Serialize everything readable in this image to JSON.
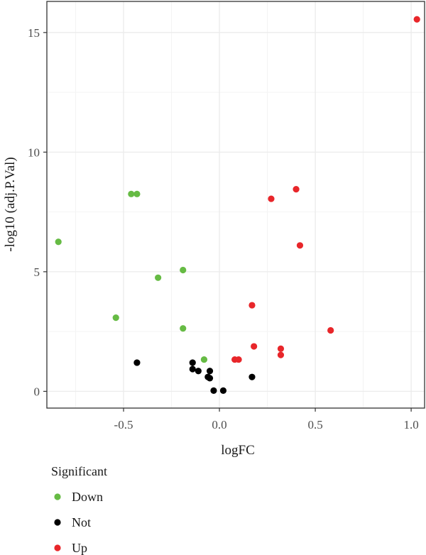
{
  "chart_data": {
    "type": "scatter",
    "title": "",
    "xlabel": "logFC",
    "ylabel": "-log10 (adj.P.Val)",
    "xlim": [
      -0.9,
      1.07
    ],
    "ylim": [
      -0.7,
      16.3
    ],
    "xticks": [
      {
        "value": -0.5,
        "label": "-0.5"
      },
      {
        "value": 0.0,
        "label": "0.0"
      },
      {
        "value": 0.5,
        "label": "0.5"
      },
      {
        "value": 1.0,
        "label": "1.0"
      }
    ],
    "yticks": [
      {
        "value": 0,
        "label": "0"
      },
      {
        "value": 5,
        "label": "5"
      },
      {
        "value": 10,
        "label": "10"
      },
      {
        "value": 15,
        "label": "15"
      }
    ],
    "grid": true,
    "legend": {
      "title": "Significant",
      "placement": "bottom-left",
      "entries": [
        {
          "label": "Down",
          "color": "#66bb44"
        },
        {
          "label": "Not",
          "color": "#000000"
        },
        {
          "label": "Up",
          "color": "#e8262a"
        }
      ]
    },
    "series": [
      {
        "name": "Down",
        "color": "#66bb44",
        "points": [
          {
            "x": -0.84,
            "y": 6.25
          },
          {
            "x": -0.46,
            "y": 8.25
          },
          {
            "x": -0.43,
            "y": 8.25
          },
          {
            "x": -0.32,
            "y": 4.75
          },
          {
            "x": -0.19,
            "y": 5.07
          },
          {
            "x": -0.54,
            "y": 3.08
          },
          {
            "x": -0.19,
            "y": 2.63
          },
          {
            "x": -0.08,
            "y": 1.33
          }
        ]
      },
      {
        "name": "Not",
        "color": "#000000",
        "points": [
          {
            "x": -0.43,
            "y": 1.2
          },
          {
            "x": -0.14,
            "y": 1.2
          },
          {
            "x": -0.14,
            "y": 0.93
          },
          {
            "x": -0.11,
            "y": 0.85
          },
          {
            "x": -0.05,
            "y": 0.85
          },
          {
            "x": -0.06,
            "y": 0.6
          },
          {
            "x": -0.05,
            "y": 0.55
          },
          {
            "x": -0.03,
            "y": 0.03
          },
          {
            "x": 0.02,
            "y": 0.03
          },
          {
            "x": 0.17,
            "y": 0.6
          }
        ]
      },
      {
        "name": "Up",
        "color": "#e8262a",
        "points": [
          {
            "x": 1.03,
            "y": 15.55
          },
          {
            "x": 0.4,
            "y": 8.45
          },
          {
            "x": 0.27,
            "y": 8.05
          },
          {
            "x": 0.42,
            "y": 6.1
          },
          {
            "x": 0.17,
            "y": 3.6
          },
          {
            "x": 0.58,
            "y": 2.55
          },
          {
            "x": 0.18,
            "y": 1.88
          },
          {
            "x": 0.32,
            "y": 1.78
          },
          {
            "x": 0.32,
            "y": 1.52
          },
          {
            "x": 0.08,
            "y": 1.33
          },
          {
            "x": 0.1,
            "y": 1.33
          }
        ]
      }
    ]
  }
}
